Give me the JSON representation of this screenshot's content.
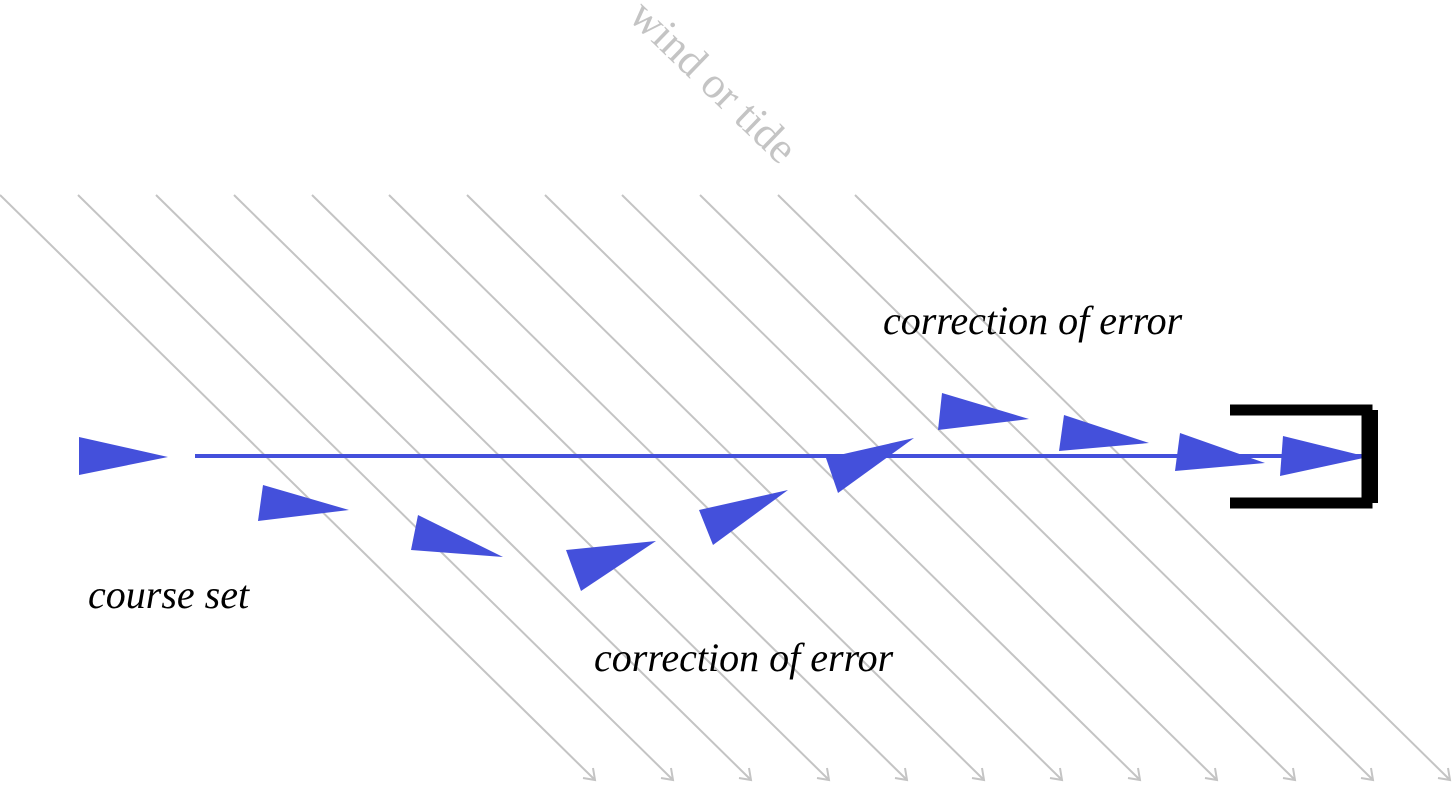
{
  "colors": {
    "wind_lines": "#c4c4c4",
    "course": "#4450db",
    "target": "#000000",
    "text": "#000000"
  },
  "labels": {
    "wind_or_tide": "wind or tide",
    "correction_upper": "correction of error",
    "course_set": "course set",
    "correction_lower": "correction of error"
  },
  "icons": {
    "target": "bracket-target-icon",
    "heading_marker": "triangle-arrow-icon"
  }
}
